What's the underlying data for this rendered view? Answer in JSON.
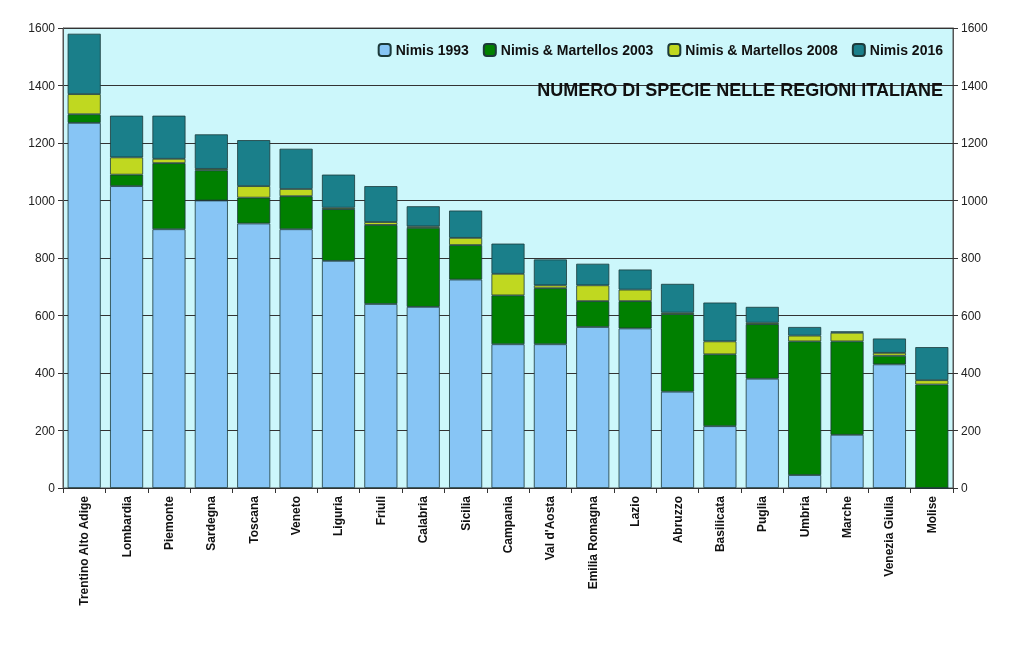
{
  "chart_data": {
    "type": "bar",
    "title": "NUMERO DI SPECIE NELLE REGIONI ITALIANE",
    "stacked": true,
    "grid": "y",
    "legend": "top right",
    "categories": [
      "Trentino Alto Adige",
      "Lombardia",
      "Piemonte",
      "Sardegna",
      "Toscana",
      "Veneto",
      "Liguria",
      "Friuli",
      "Calabria",
      "Sicilia",
      "Campania",
      "Val d'Aosta",
      "Emilia Romagna",
      "Lazio",
      "Abruzzo",
      "Basilicata",
      "Puglia",
      "Umbria",
      "Marche",
      "Venezia Giulia",
      "Molise"
    ],
    "series": [
      {
        "name": "Nimis 1993",
        "color": "#87c5f5",
        "values": [
          1270,
          1050,
          900,
          1000,
          920,
          900,
          790,
          640,
          630,
          725,
          500,
          500,
          560,
          555,
          335,
          215,
          380,
          45,
          185,
          430,
          0
        ]
      },
      {
        "name": "Nimis & Martellos 2003",
        "color": "#008000",
        "values": [
          30,
          40,
          230,
          105,
          90,
          115,
          180,
          275,
          275,
          120,
          170,
          195,
          90,
          95,
          270,
          250,
          190,
          465,
          325,
          30,
          360
        ]
      },
      {
        "name": "Nimis & Martellos 2008",
        "color": "#c0d820",
        "values": [
          70,
          60,
          15,
          5,
          40,
          25,
          5,
          10,
          5,
          25,
          75,
          10,
          55,
          40,
          5,
          45,
          5,
          20,
          30,
          10,
          15
        ]
      },
      {
        "name": "Nimis 2016",
        "color": "#1a7f8a",
        "values": [
          210,
          145,
          150,
          120,
          160,
          140,
          115,
          125,
          70,
          95,
          105,
          90,
          75,
          70,
          100,
          135,
          55,
          30,
          5,
          50,
          115
        ]
      }
    ],
    "ylim": [
      0,
      1600
    ],
    "yticks": [
      0,
      200,
      400,
      600,
      800,
      1000,
      1200,
      1400,
      1600
    ],
    "y2lim": [
      0,
      1600
    ],
    "y2ticks": [
      0,
      200,
      400,
      600,
      800,
      1000,
      1200,
      1400,
      1600
    ]
  }
}
